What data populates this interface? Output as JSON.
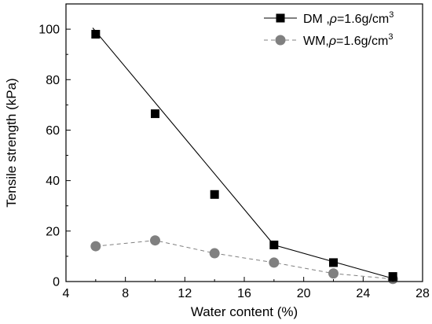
{
  "chart_data": {
    "type": "scatter",
    "xlabel": "Water content (%)",
    "ylabel": "Tensile strength (kPa)",
    "xlim": [
      4,
      28
    ],
    "ylim": [
      0,
      110
    ],
    "xticks": [
      4,
      8,
      12,
      16,
      20,
      24,
      28
    ],
    "yticks": [
      0,
      20,
      40,
      60,
      80,
      100
    ],
    "grid": false,
    "legend_position": "top-right",
    "series": [
      {
        "name": "DM ,ρ=1.6g/cm3",
        "label_main": "DM ,",
        "label_rho": "ρ",
        "label_rest": "=1.6g/cm",
        "label_sup": "3",
        "marker": "square",
        "color": "#000000",
        "line_style": "solid",
        "x": [
          6,
          10,
          14,
          18,
          22,
          26
        ],
        "y": [
          98,
          66.5,
          34.5,
          14.5,
          7.5,
          2
        ],
        "fit_line": {
          "x": [
            5.8,
            18,
            26
          ],
          "y": [
            100.5,
            14.5,
            1.2
          ]
        }
      },
      {
        "name": "WM,ρ=1.6g/cm3",
        "label_main": "WM,",
        "label_rho": "ρ",
        "label_rest": "=1.6g/cm",
        "label_sup": "3",
        "marker": "circle",
        "color": "#808080",
        "line_style": "dashed",
        "x": [
          6,
          10,
          14,
          18,
          22,
          26
        ],
        "y": [
          14,
          16.3,
          11.2,
          7.5,
          3.2,
          1
        ]
      }
    ]
  }
}
